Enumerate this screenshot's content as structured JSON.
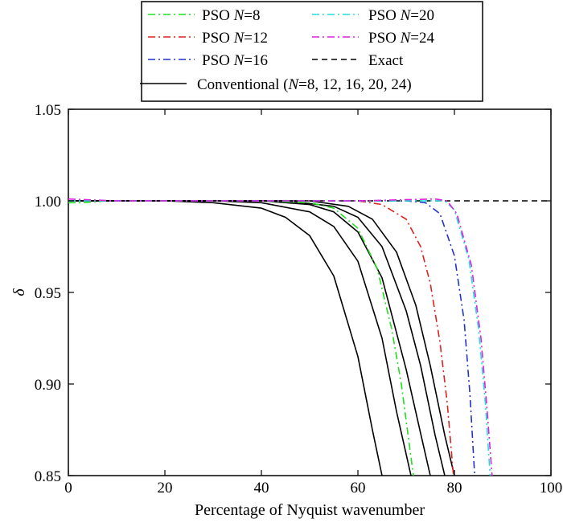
{
  "chart_data": {
    "type": "line",
    "title": "",
    "xlabel": "Percentage of Nyquist wavenumber",
    "ylabel": "δ",
    "xlim": [
      0,
      100
    ],
    "ylim": [
      0.85,
      1.05
    ],
    "xticks": [
      "0",
      "20",
      "40",
      "60",
      "80",
      "100"
    ],
    "yticks": [
      "0.85",
      "0.90",
      "0.95",
      "1.00",
      "1.05"
    ],
    "grid": false,
    "legend_placement": "top (above plot, boxed)",
    "legend": [
      {
        "prefix": "PSO ",
        "italic": "N",
        "suffix": "=8",
        "color": "#22dd22",
        "dash": "dashdot"
      },
      {
        "prefix": "PSO ",
        "italic": "N",
        "suffix": "=12",
        "color": "#dd2222",
        "dash": "dashdot"
      },
      {
        "prefix": "PSO ",
        "italic": "N",
        "suffix": "=16",
        "color": "#2233cc",
        "dash": "dashdot"
      },
      {
        "prefix": "Conventional (",
        "italic": "N",
        "suffix": "=8, 12, 16, 20, 24)",
        "color": "#000000",
        "dash": "solid"
      },
      {
        "prefix": "PSO ",
        "italic": "N",
        "suffix": "=20",
        "color": "#22dddd",
        "dash": "dashdot"
      },
      {
        "prefix": "PSO ",
        "italic": "N",
        "suffix": "=24",
        "color": "#dd22dd",
        "dash": "dashdot"
      },
      {
        "prefix": "Exact",
        "italic": "",
        "suffix": "",
        "color": "#000000",
        "dash": "dashed"
      }
    ],
    "series": [
      {
        "name": "Exact",
        "color": "#000000",
        "dash": "dashed",
        "x": [
          0,
          100
        ],
        "y": [
          1.0,
          1.0
        ]
      },
      {
        "name": "Conventional (N=8, 12, 16, 20, 24)",
        "color": "#000000",
        "dash": "solid",
        "x": [
          0,
          20,
          30,
          40,
          45,
          50,
          55,
          60,
          63,
          65
        ],
        "y": [
          1.0,
          1.0,
          0.999,
          0.996,
          0.991,
          0.981,
          0.959,
          0.915,
          0.875,
          0.85
        ]
      },
      {
        "name": "Conventional (N=8, 12, 16, 20, 24)",
        "color": "#000000",
        "dash": "solid",
        "x": [
          0,
          30,
          40,
          50,
          55,
          60,
          65,
          68,
          71
        ],
        "y": [
          1.0,
          1.0,
          0.999,
          0.994,
          0.986,
          0.967,
          0.925,
          0.885,
          0.85
        ]
      },
      {
        "name": "Conventional (N=8, 12, 16, 20, 24)",
        "color": "#000000",
        "dash": "solid",
        "x": [
          0,
          40,
          50,
          55,
          60,
          65,
          70,
          73,
          75
        ],
        "y": [
          1.0,
          1.0,
          0.998,
          0.994,
          0.983,
          0.958,
          0.908,
          0.873,
          0.85
        ]
      },
      {
        "name": "Conventional (N=8, 12, 16, 20, 24)",
        "color": "#000000",
        "dash": "solid",
        "x": [
          0,
          45,
          55,
          60,
          65,
          70,
          73,
          76,
          78
        ],
        "y": [
          1.0,
          1.0,
          0.997,
          0.991,
          0.975,
          0.94,
          0.91,
          0.872,
          0.85
        ]
      },
      {
        "name": "Conventional (N=8, 12, 16, 20, 24)",
        "color": "#000000",
        "dash": "solid",
        "x": [
          0,
          50,
          58,
          63,
          68,
          72,
          75,
          78,
          80
        ],
        "y": [
          1.0,
          1.0,
          0.997,
          0.99,
          0.972,
          0.943,
          0.91,
          0.872,
          0.85
        ]
      },
      {
        "name": "PSO N=8",
        "color": "#22dd22",
        "dash": "dashdot",
        "x": [
          0,
          3,
          8,
          15,
          40,
          50,
          55,
          60,
          64,
          67,
          69,
          71.5
        ],
        "y": [
          0.999,
          0.999,
          1.0,
          1.0,
          1.0,
          0.999,
          0.996,
          0.985,
          0.963,
          0.93,
          0.9,
          0.85
        ]
      },
      {
        "name": "PSO N=12",
        "color": "#dd2222",
        "dash": "dashdot",
        "x": [
          0,
          10,
          40,
          60,
          65,
          70,
          73,
          75,
          77,
          78.5,
          79.8
        ],
        "y": [
          1.0,
          1.0,
          1.0,
          1.0,
          0.998,
          0.99,
          0.975,
          0.955,
          0.923,
          0.89,
          0.85
        ]
      },
      {
        "name": "PSO N=16",
        "color": "#2233cc",
        "dash": "dashdot",
        "x": [
          0,
          20,
          60,
          70,
          74,
          77,
          80,
          82,
          83.2,
          84.2
        ],
        "y": [
          1.0,
          1.0,
          1.0,
          1.0,
          0.999,
          0.993,
          0.97,
          0.935,
          0.895,
          0.85
        ]
      },
      {
        "name": "PSO N=20",
        "color": "#22dddd",
        "dash": "dashdot",
        "x": [
          0,
          20,
          60,
          75,
          78,
          80,
          83,
          85,
          86.4,
          87.4
        ],
        "y": [
          1.0,
          1.0,
          1.0,
          1.0,
          1.0,
          0.995,
          0.968,
          0.93,
          0.89,
          0.85
        ]
      },
      {
        "name": "PSO N=24",
        "color": "#dd22dd",
        "dash": "dashdot",
        "x": [
          0,
          10,
          60,
          76,
          78.5,
          80.5,
          83.5,
          85.5,
          86.8,
          87.8
        ],
        "y": [
          1.001,
          1.0,
          1.0,
          1.001,
          1.0,
          0.993,
          0.965,
          0.925,
          0.885,
          0.85
        ]
      }
    ]
  }
}
